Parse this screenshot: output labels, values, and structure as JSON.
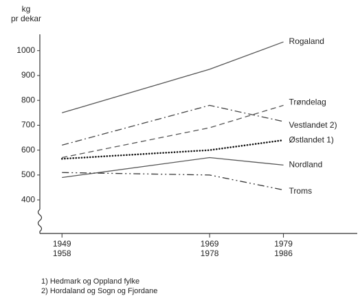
{
  "chart_data": {
    "type": "line",
    "y_label": "kg\npr dekar",
    "x": [
      1949,
      1969,
      1979
    ],
    "xlim": [
      1946,
      1989
    ],
    "xticks": [
      {
        "value": 1949,
        "label": "1949\n1958"
      },
      {
        "value": 1969,
        "label": "1969\n1978"
      },
      {
        "value": 1979,
        "label": "1979\n1986"
      }
    ],
    "ylim": [
      265,
      1060
    ],
    "yticks": [
      400,
      500,
      600,
      700,
      800,
      900,
      1000
    ],
    "series": [
      {
        "name": "Rogaland",
        "color": "#555555",
        "style": "solid",
        "values": [
          750,
          925,
          1035
        ]
      },
      {
        "name": "Trøndelag",
        "color": "#555555",
        "style": "dashed",
        "values": [
          570,
          690,
          780
        ]
      },
      {
        "name": "Vestlandet 2)",
        "color": "#444444",
        "style": "dashdot",
        "values": [
          620,
          780,
          715
        ]
      },
      {
        "name": "Østlandet 1)",
        "color": "#111111",
        "style": "dotted",
        "values": [
          565,
          600,
          640
        ]
      },
      {
        "name": "Nordland",
        "color": "#555555",
        "style": "solid",
        "values": [
          490,
          570,
          540
        ]
      },
      {
        "name": "Troms",
        "color": "#333333",
        "style": "dashdotdot",
        "values": [
          510,
          500,
          440
        ]
      }
    ],
    "footnotes": [
      "1) Hedmark og Oppland fylke",
      "2) Hordaland og Sogn og Fjordane"
    ]
  }
}
